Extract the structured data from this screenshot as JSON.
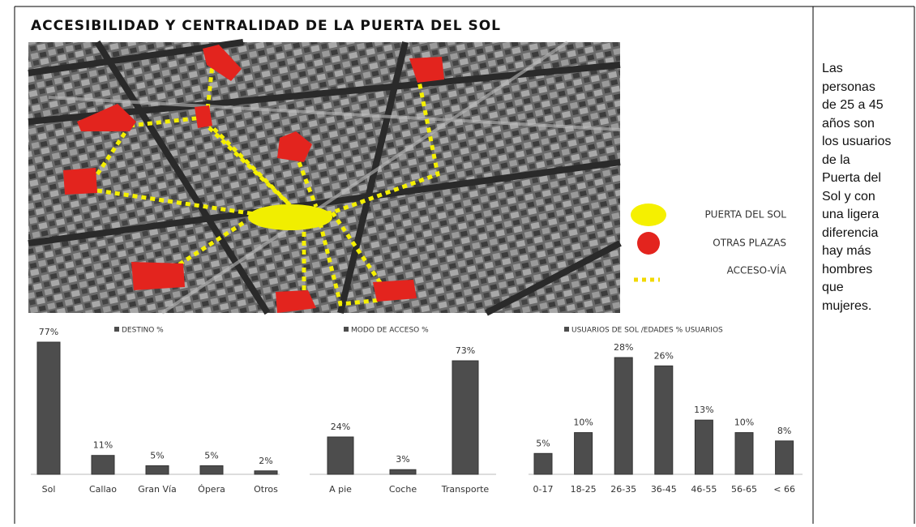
{
  "title": "ACCESIBILIDAD Y CENTRALIDAD DE LA PUERTA DEL SOL",
  "map_legend": [
    "PUERTA DEL SOL",
    "OTRAS PLAZAS",
    "ACCESO-VÍA"
  ],
  "side_text": "Las personas de 25 a 45 años son los usuarios de la Puerta del Sol y con una ligera diferencia hay más hombres que mujeres.",
  "chart_data": [
    {
      "type": "bar",
      "title": "DESTINO %",
      "color": "#4d4d4d",
      "categories": [
        "Sol",
        "Callao",
        "Gran Vía",
        "Ópera",
        "Otros"
      ],
      "values": [
        77,
        11,
        5,
        5,
        2
      ],
      "value_labels": [
        "77%",
        "11%",
        "5%",
        "5%",
        "2%"
      ]
    },
    {
      "type": "bar",
      "title": "MODO DE ACCESO %",
      "color": "#4d4d4d",
      "categories": [
        "A pie",
        "Coche",
        "Transporte"
      ],
      "values": [
        24,
        3,
        73
      ],
      "value_labels": [
        "24%",
        "3%",
        "73%"
      ]
    },
    {
      "type": "bar",
      "title": "USUARIOS DE SOL /EDADES % USUARIOS",
      "color": "#4d4d4d",
      "categories": [
        "0-17",
        "18-25",
        "26-35",
        "36-45",
        "46-55",
        "56-65",
        "< 66"
      ],
      "values": [
        5,
        10,
        28,
        26,
        13,
        10,
        8
      ],
      "value_labels": [
        "5%",
        "10%",
        "28%",
        "26%",
        "13%",
        "10%",
        "8%"
      ]
    }
  ]
}
